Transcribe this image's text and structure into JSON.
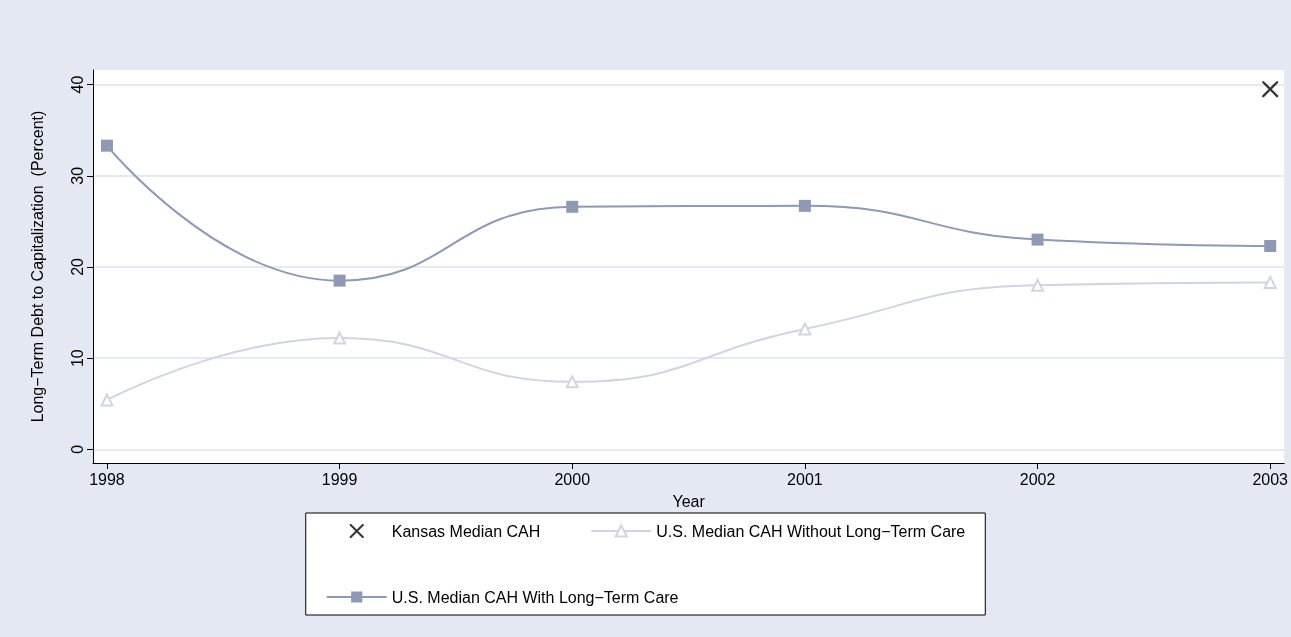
{
  "chart_data": {
    "type": "line",
    "xlabel": "Year",
    "ylabel": "Long−Term Debt to Capitalization  (Percent)",
    "x": [
      1998,
      1999,
      2000,
      2001,
      2002,
      2003
    ],
    "series": [
      {
        "name": "Kansas Median CAH",
        "type": "scatter",
        "marker": "cross",
        "color": "#000000",
        "values": [
          null,
          null,
          null,
          null,
          null,
          39.5
        ]
      },
      {
        "name": "U.S. Median CAH Without Long−Term Care",
        "marker": "triangle",
        "color": "#d0d5e3",
        "values": [
          5.4,
          12.2,
          7.4,
          13.2,
          18.0,
          18.3
        ]
      },
      {
        "name": "U.S. Median CAH With Long−Term Care",
        "marker": "square",
        "color": "#8e99b4",
        "values": [
          33.3,
          18.5,
          26.6,
          26.7,
          23.0,
          22.3
        ]
      }
    ],
    "xlim": [
      1997.94,
      2003.06
    ],
    "xticks": [
      1998,
      1999,
      2000,
      2001,
      2002,
      2003
    ],
    "ylim": [
      -1.5,
      41.6
    ],
    "yticks": [
      0,
      10,
      20,
      30,
      40
    ],
    "grid": "y",
    "legend": "bottom"
  }
}
